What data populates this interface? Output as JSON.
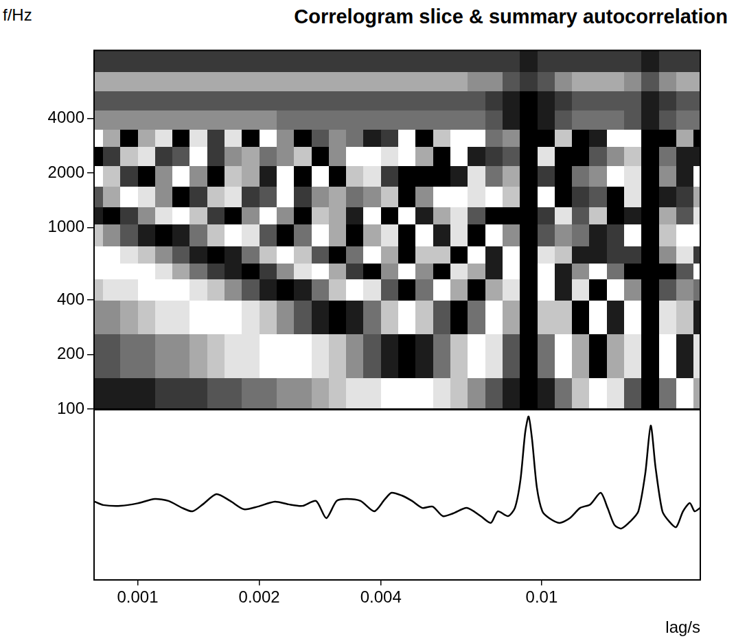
{
  "chart_data": [
    {
      "type": "heatmap",
      "title": "Correlogram slice & summary autocorrelation",
      "y_label": "f/Hz",
      "log": true,
      "grid": false,
      "tick_labels": "y",
      "color": "#000000",
      "zlim": [
        0,
        9
      ],
      "xlim": [
        0.00078,
        0.0247
      ],
      "ylim": [
        100,
        9500
      ],
      "yticks": [
        100,
        200,
        400,
        1000,
        2000,
        4000
      ],
      "x": [
        0.0007445,
        0.000822,
        0.0009076,
        0.001002,
        0.0011063,
        0.0012215,
        0.0013486,
        0.001489,
        0.001644,
        0.0018151,
        0.0020041,
        0.0022127,
        0.002443,
        0.0026973,
        0.002978,
        0.003288,
        0.0036303,
        0.0040081,
        0.0044254,
        0.004886,
        0.0053946,
        0.0059561,
        0.006576,
        0.0072606,
        0.0080163,
        0.0088507,
        0.009772,
        0.0107891,
        0.0119122,
        0.0131521,
        0.0145211,
        0.0160326,
        0.0177014,
        0.0195439,
        0.0215782,
        0.0238243,
        0.0263043
      ],
      "y": [
        100,
        150,
        260,
        400,
        520,
        640,
        800,
        1050,
        1300,
        1700,
        2200,
        2800,
        3500,
        4500,
        5700,
        7300,
        9500
      ],
      "cells": [
        [
          8,
          8,
          8,
          8,
          7,
          7,
          7,
          6,
          6,
          5,
          5,
          4,
          4,
          3,
          2,
          1,
          1,
          0,
          0,
          0,
          1,
          2,
          4,
          6,
          8,
          9,
          8,
          5,
          2,
          0,
          1,
          6,
          9,
          5,
          0,
          3
        ],
        [
          6,
          6,
          5,
          5,
          4,
          4,
          3,
          2,
          1,
          1,
          0,
          0,
          0,
          1,
          2,
          4,
          6,
          8,
          9,
          8,
          5,
          2,
          0,
          1,
          6,
          9,
          5,
          0,
          3,
          9,
          3,
          1,
          9,
          0,
          8,
          1
        ],
        [
          4,
          4,
          3,
          2,
          1,
          1,
          0,
          0,
          0,
          1,
          2,
          4,
          6,
          8,
          9,
          8,
          5,
          2,
          0,
          2,
          6,
          9,
          5,
          0,
          3,
          9,
          2,
          2,
          9,
          0,
          8,
          0,
          9,
          1,
          2,
          8
        ],
        [
          2,
          1,
          1,
          0,
          0,
          0,
          1,
          2,
          4,
          6,
          8,
          9,
          8,
          5,
          2,
          0,
          1,
          6,
          9,
          5,
          0,
          3,
          9,
          3,
          1,
          9,
          0,
          8,
          1,
          9,
          0,
          4,
          9,
          6,
          4,
          5
        ],
        [
          0,
          0,
          0,
          0,
          1,
          3,
          5,
          7,
          8,
          9,
          7,
          4,
          1,
          0,
          3,
          7,
          9,
          4,
          0,
          4,
          9,
          1,
          3,
          8,
          0,
          9,
          0,
          8,
          4,
          0,
          5,
          9,
          9,
          9,
          6,
          0
        ],
        [
          0,
          0,
          1,
          2,
          4,
          6,
          8,
          9,
          8,
          5,
          2,
          0,
          2,
          6,
          9,
          5,
          0,
          3,
          9,
          2,
          2,
          9,
          0,
          8,
          0,
          9,
          1,
          2,
          8,
          8,
          7,
          7,
          9,
          4,
          1,
          7
        ],
        [
          2,
          4,
          6,
          8,
          9,
          8,
          5,
          2,
          0,
          1,
          6,
          9,
          5,
          0,
          3,
          9,
          3,
          1,
          9,
          0,
          8,
          1,
          9,
          0,
          4,
          9,
          6,
          4,
          5,
          8,
          7,
          0,
          9,
          2,
          0,
          0
        ],
        [
          8,
          9,
          7,
          4,
          1,
          0,
          2,
          7,
          9,
          4,
          0,
          4,
          9,
          2,
          3,
          8,
          0,
          9,
          0,
          8,
          3,
          1,
          6,
          9,
          9,
          9,
          7,
          1,
          6,
          2,
          9,
          8,
          9,
          3,
          6,
          1
        ],
        [
          6,
          3,
          0,
          1,
          4,
          9,
          7,
          2,
          1,
          7,
          6,
          0,
          7,
          4,
          3,
          5,
          4,
          2,
          9,
          4,
          0,
          0,
          1,
          0,
          2,
          9,
          0,
          9,
          7,
          6,
          9,
          1,
          9,
          8,
          7,
          3
        ],
        [
          0,
          2,
          7,
          9,
          4,
          0,
          4,
          9,
          2,
          3,
          8,
          0,
          9,
          0,
          9,
          2,
          1,
          7,
          9,
          9,
          9,
          8,
          1,
          5,
          3,
          9,
          7,
          9,
          5,
          4,
          0,
          1,
          9,
          4,
          8,
          0
        ],
        [
          9,
          7,
          2,
          1,
          7,
          6,
          0,
          7,
          4,
          3,
          5,
          4,
          2,
          9,
          4,
          0,
          0,
          1,
          0,
          3,
          9,
          0,
          8,
          7,
          6,
          9,
          1,
          9,
          9,
          6,
          4,
          2,
          9,
          5,
          8,
          8
        ],
        [
          0,
          3,
          9,
          3,
          1,
          9,
          1,
          7,
          1,
          9,
          0,
          4,
          9,
          6,
          4,
          5,
          8,
          7,
          0,
          9,
          2,
          0,
          0,
          5,
          4,
          9,
          9,
          2,
          9,
          8,
          0,
          0,
          9,
          9,
          3,
          9
        ],
        [
          4,
          4,
          4,
          4,
          4,
          4,
          4,
          4,
          4,
          4,
          4,
          5,
          5,
          5,
          5,
          5,
          5,
          5,
          5,
          5,
          5,
          5,
          5,
          6,
          8,
          9,
          8,
          6,
          5,
          5,
          5,
          6,
          8,
          6,
          5,
          5
        ],
        [
          6,
          6,
          6,
          6,
          6,
          6,
          6,
          6,
          6,
          6,
          6,
          6,
          6,
          6,
          6,
          6,
          6,
          6,
          6,
          6,
          6,
          6,
          6,
          7,
          8,
          9,
          8,
          7,
          6,
          6,
          6,
          6,
          8,
          7,
          6,
          6
        ],
        [
          3,
          3,
          3,
          3,
          3,
          3,
          3,
          3,
          3,
          3,
          3,
          3,
          3,
          3,
          3,
          3,
          3,
          3,
          3,
          3,
          3,
          3,
          4,
          4,
          6,
          7,
          6,
          4,
          3,
          3,
          3,
          4,
          6,
          4,
          3,
          3
        ],
        [
          7,
          7,
          7,
          7,
          7,
          7,
          7,
          7,
          7,
          7,
          7,
          7,
          7,
          7,
          7,
          7,
          7,
          7,
          7,
          7,
          7,
          7,
          7,
          7,
          7,
          8,
          7,
          7,
          7,
          7,
          7,
          7,
          8,
          7,
          7,
          7
        ]
      ]
    },
    {
      "type": "line",
      "x_label": "lag/s",
      "log": "x",
      "grid": false,
      "tick_labels": "x",
      "color": "#000000",
      "xlim": [
        0.00078,
        0.0247
      ],
      "ylim": [
        0,
        1
      ],
      "xticks": [
        0.001,
        0.002,
        0.004,
        0.01
      ],
      "x": [
        0.000782,
        0.000822,
        0.000907,
        0.001,
        0.001103,
        0.001192,
        0.001289,
        0.001367,
        0.00145,
        0.001567,
        0.001695,
        0.001833,
        0.001983,
        0.002186,
        0.002363,
        0.002556,
        0.002764,
        0.00293,
        0.003108,
        0.003295,
        0.003563,
        0.003853,
        0.004086,
        0.004249,
        0.004506,
        0.004777,
        0.005066,
        0.005372,
        0.005694,
        0.006039,
        0.00653,
        0.007063,
        0.007488,
        0.007786,
        0.008256,
        0.008586,
        0.008859,
        0.009105,
        0.009284,
        0.009467,
        0.00973,
        0.01004,
        0.01044,
        0.01107,
        0.01174,
        0.01245,
        0.0132,
        0.014,
        0.01456,
        0.01514,
        0.01574,
        0.01656,
        0.01735,
        0.01805,
        0.01862,
        0.01913,
        0.0199,
        0.02069,
        0.02152,
        0.02238,
        0.02327,
        0.02391,
        0.02467
      ],
      "values": [
        0.46,
        0.44,
        0.435,
        0.45,
        0.476,
        0.464,
        0.423,
        0.403,
        0.444,
        0.504,
        0.464,
        0.415,
        0.431,
        0.46,
        0.444,
        0.435,
        0.464,
        0.363,
        0.464,
        0.476,
        0.464,
        0.403,
        0.472,
        0.512,
        0.496,
        0.464,
        0.423,
        0.431,
        0.375,
        0.391,
        0.423,
        0.375,
        0.335,
        0.403,
        0.375,
        0.423,
        0.585,
        0.867,
        0.96,
        0.827,
        0.544,
        0.403,
        0.363,
        0.335,
        0.363,
        0.423,
        0.444,
        0.512,
        0.423,
        0.323,
        0.302,
        0.343,
        0.403,
        0.625,
        0.907,
        0.665,
        0.403,
        0.343,
        0.31,
        0.403,
        0.452,
        0.403,
        0.423
      ]
    }
  ]
}
